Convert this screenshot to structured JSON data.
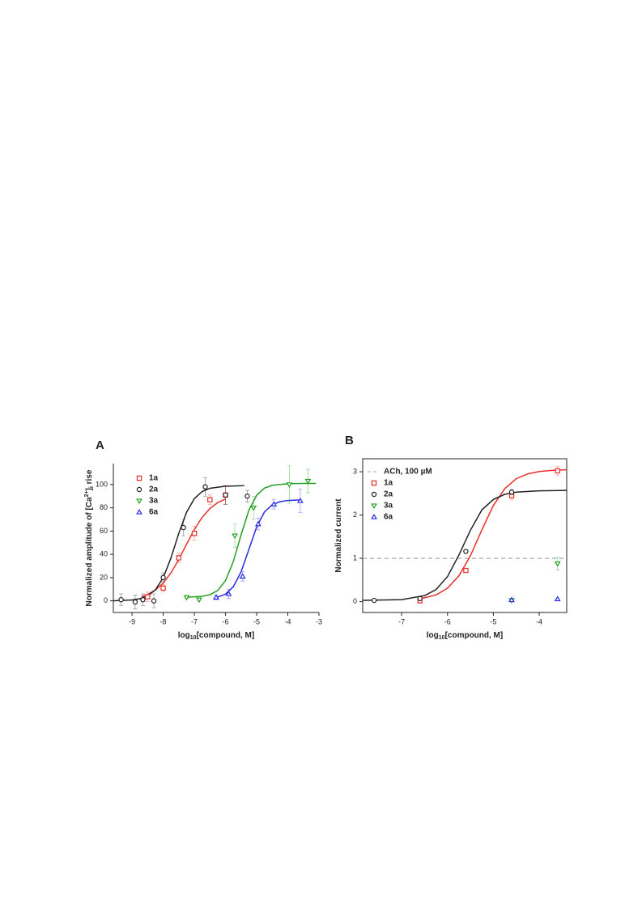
{
  "chart_data": [
    {
      "type": "scatter",
      "panel_label": "A",
      "frame": false,
      "x_label": [
        "log",
        "10",
        "[compound, M]"
      ],
      "y_label": [
        "Normalized amplitude of [Ca",
        "2+",
        "]",
        "i",
        " rise"
      ],
      "xlim": [
        -9.6,
        -3
      ],
      "xticks": [
        -9,
        -8,
        -7,
        -6,
        -5,
        -4,
        -3
      ],
      "ylim": [
        -10,
        118
      ],
      "yticks": [
        0,
        20,
        40,
        60,
        80,
        100
      ],
      "series": [
        {
          "name": "1a",
          "color": "#e8302a",
          "marker": "square",
          "x": [
            -8.5,
            -8,
            -7.5,
            -7,
            -6.5,
            -6
          ],
          "values": [
            3.5,
            11,
            37,
            58,
            87,
            91
          ],
          "errors": [
            4,
            3,
            4,
            6,
            4,
            8
          ]
        },
        {
          "name": "2a",
          "color": "#222222",
          "marker": "circle",
          "x": [
            -9.35,
            -8.9,
            -8.65,
            -8.3,
            -8,
            -7.35,
            -6.65,
            -6,
            -5.3
          ],
          "values": [
            1,
            -1,
            1,
            0,
            20,
            63,
            98,
            91,
            90
          ],
          "errors": [
            5,
            6,
            5,
            6,
            4,
            7,
            8,
            8,
            5
          ]
        },
        {
          "name": "3a",
          "color": "#22a022",
          "marker": "triangle-down",
          "x": [
            -7.25,
            -6.85,
            -5.7,
            -5.1,
            -3.95,
            -3.35
          ],
          "values": [
            3,
            1,
            56,
            80,
            100,
            103
          ],
          "errors": [
            1,
            1,
            10,
            10,
            16,
            10
          ]
        },
        {
          "name": "6a",
          "color": "#2a2ae0",
          "marker": "triangle-up",
          "x": [
            -6.3,
            -5.9,
            -5.45,
            -4.95,
            -4.45,
            -3.6
          ],
          "values": [
            3,
            6,
            21,
            66,
            83,
            86
          ],
          "errors": [
            2,
            4,
            4,
            5,
            4,
            10
          ]
        }
      ],
      "curves": [
        {
          "color": "#e8302a",
          "x": [
            -8.7,
            -8.5,
            -8.25,
            -8,
            -7.75,
            -7.5,
            -7.25,
            -7,
            -6.75,
            -6.5,
            -6.25,
            -6
          ],
          "values": [
            3.5,
            5.5,
            9.3,
            15.3,
            24.1,
            35.6,
            48.7,
            61.3,
            71.8,
            79.4,
            84.5,
            87.6
          ]
        },
        {
          "color": "#222222",
          "x": [
            -9.6,
            -9.5,
            -9,
            -8.75,
            -8.5,
            -8.25,
            -8,
            -7.75,
            -7.5,
            -7.25,
            -7,
            -6.75,
            -6.5,
            -6,
            -5.4
          ],
          "values": [
            0.1,
            0.14,
            0.78,
            1.8,
            4.2,
            9.5,
            19.9,
            36.9,
            58,
            76.2,
            87.9,
            94,
            96.8,
            98.6,
            99
          ]
        },
        {
          "color": "#22a022",
          "x": [
            -7.3,
            -7.25,
            -6.75,
            -6.5,
            -6.25,
            -6,
            -5.75,
            -5.5,
            -5.25,
            -5,
            -4.75,
            -4.5,
            -4,
            -3.5,
            -3.1
          ],
          "values": [
            3,
            3.1,
            3.9,
            5.3,
            8.9,
            17.4,
            33.7,
            56.8,
            77.9,
            90.8,
            96.9,
            99.4,
            100.7,
            101,
            101
          ]
        },
        {
          "color": "#2a2ae0",
          "x": [
            -6.3,
            -6.25,
            -6,
            -5.75,
            -5.5,
            -5.25,
            -5,
            -4.75,
            -4.5,
            -4.25,
            -4,
            -3.6
          ],
          "values": [
            3,
            3.2,
            5.8,
            12.1,
            24.9,
            44.25,
            63.6,
            76.4,
            82.7,
            85.3,
            86.3,
            86.8
          ]
        }
      ]
    },
    {
      "type": "scatter",
      "panel_label": "B",
      "frame": true,
      "x_label": [
        "log",
        "10",
        "[compound, M]"
      ],
      "y_label": [
        "Normalized current"
      ],
      "xlim": [
        -7.85,
        -3.4
      ],
      "xticks": [
        -7,
        -6,
        -5,
        -4
      ],
      "ylim": [
        -0.25,
        3.3
      ],
      "yticks": [
        0,
        1,
        2,
        3
      ],
      "reference_line": {
        "name": "ACh, 100 µM",
        "value": 1,
        "color": "#aaaaaa"
      },
      "series": [
        {
          "name": "1a",
          "color": "#e8302a",
          "marker": "square",
          "x": [
            -6.6,
            -5.6,
            -4.6,
            -3.6
          ],
          "values": [
            0.02,
            0.72,
            2.45,
            3.02
          ],
          "errors": [
            0.02,
            0.04,
            0.1,
            0.1
          ]
        },
        {
          "name": "2a",
          "color": "#222222",
          "marker": "circle",
          "x": [
            -7.6,
            -6.6,
            -5.6,
            -4.6
          ],
          "values": [
            0.03,
            0.07,
            1.16,
            2.53
          ],
          "errors": [
            0.02,
            0.02,
            0.04,
            0.06
          ]
        },
        {
          "name": "3a",
          "color": "#22a022",
          "marker": "triangle-down",
          "x": [
            -4.6,
            -3.6
          ],
          "values": [
            0.03,
            0.88
          ],
          "errors": [
            0.02,
            0.15
          ]
        },
        {
          "name": "6a",
          "color": "#2a2ae0",
          "marker": "triangle-up",
          "x": [
            -4.6,
            -3.6
          ],
          "values": [
            0.04,
            0.06
          ],
          "errors": [
            0.02,
            0.02
          ]
        }
      ],
      "curves": [
        {
          "color": "#e8302a",
          "x": [
            -6.6,
            -6.25,
            -6,
            -5.75,
            -5.5,
            -5.25,
            -5,
            -4.75,
            -4.5,
            -4.25,
            -4,
            -3.75,
            -3.4
          ],
          "values": [
            0.066,
            0.155,
            0.31,
            0.6,
            1.06,
            1.66,
            2.22,
            2.61,
            2.84,
            2.95,
            3.005,
            3.03,
            3.045
          ]
        },
        {
          "color": "#222222",
          "x": [
            -7.85,
            -7,
            -6.5,
            -6.25,
            -6,
            -5.75,
            -5.5,
            -5.25,
            -5,
            -4.75,
            -4.5,
            -4,
            -3.4
          ],
          "values": [
            0.03,
            0.047,
            0.14,
            0.28,
            0.58,
            1.08,
            1.65,
            2.12,
            2.36,
            2.48,
            2.53,
            2.56,
            2.57
          ]
        }
      ]
    }
  ]
}
